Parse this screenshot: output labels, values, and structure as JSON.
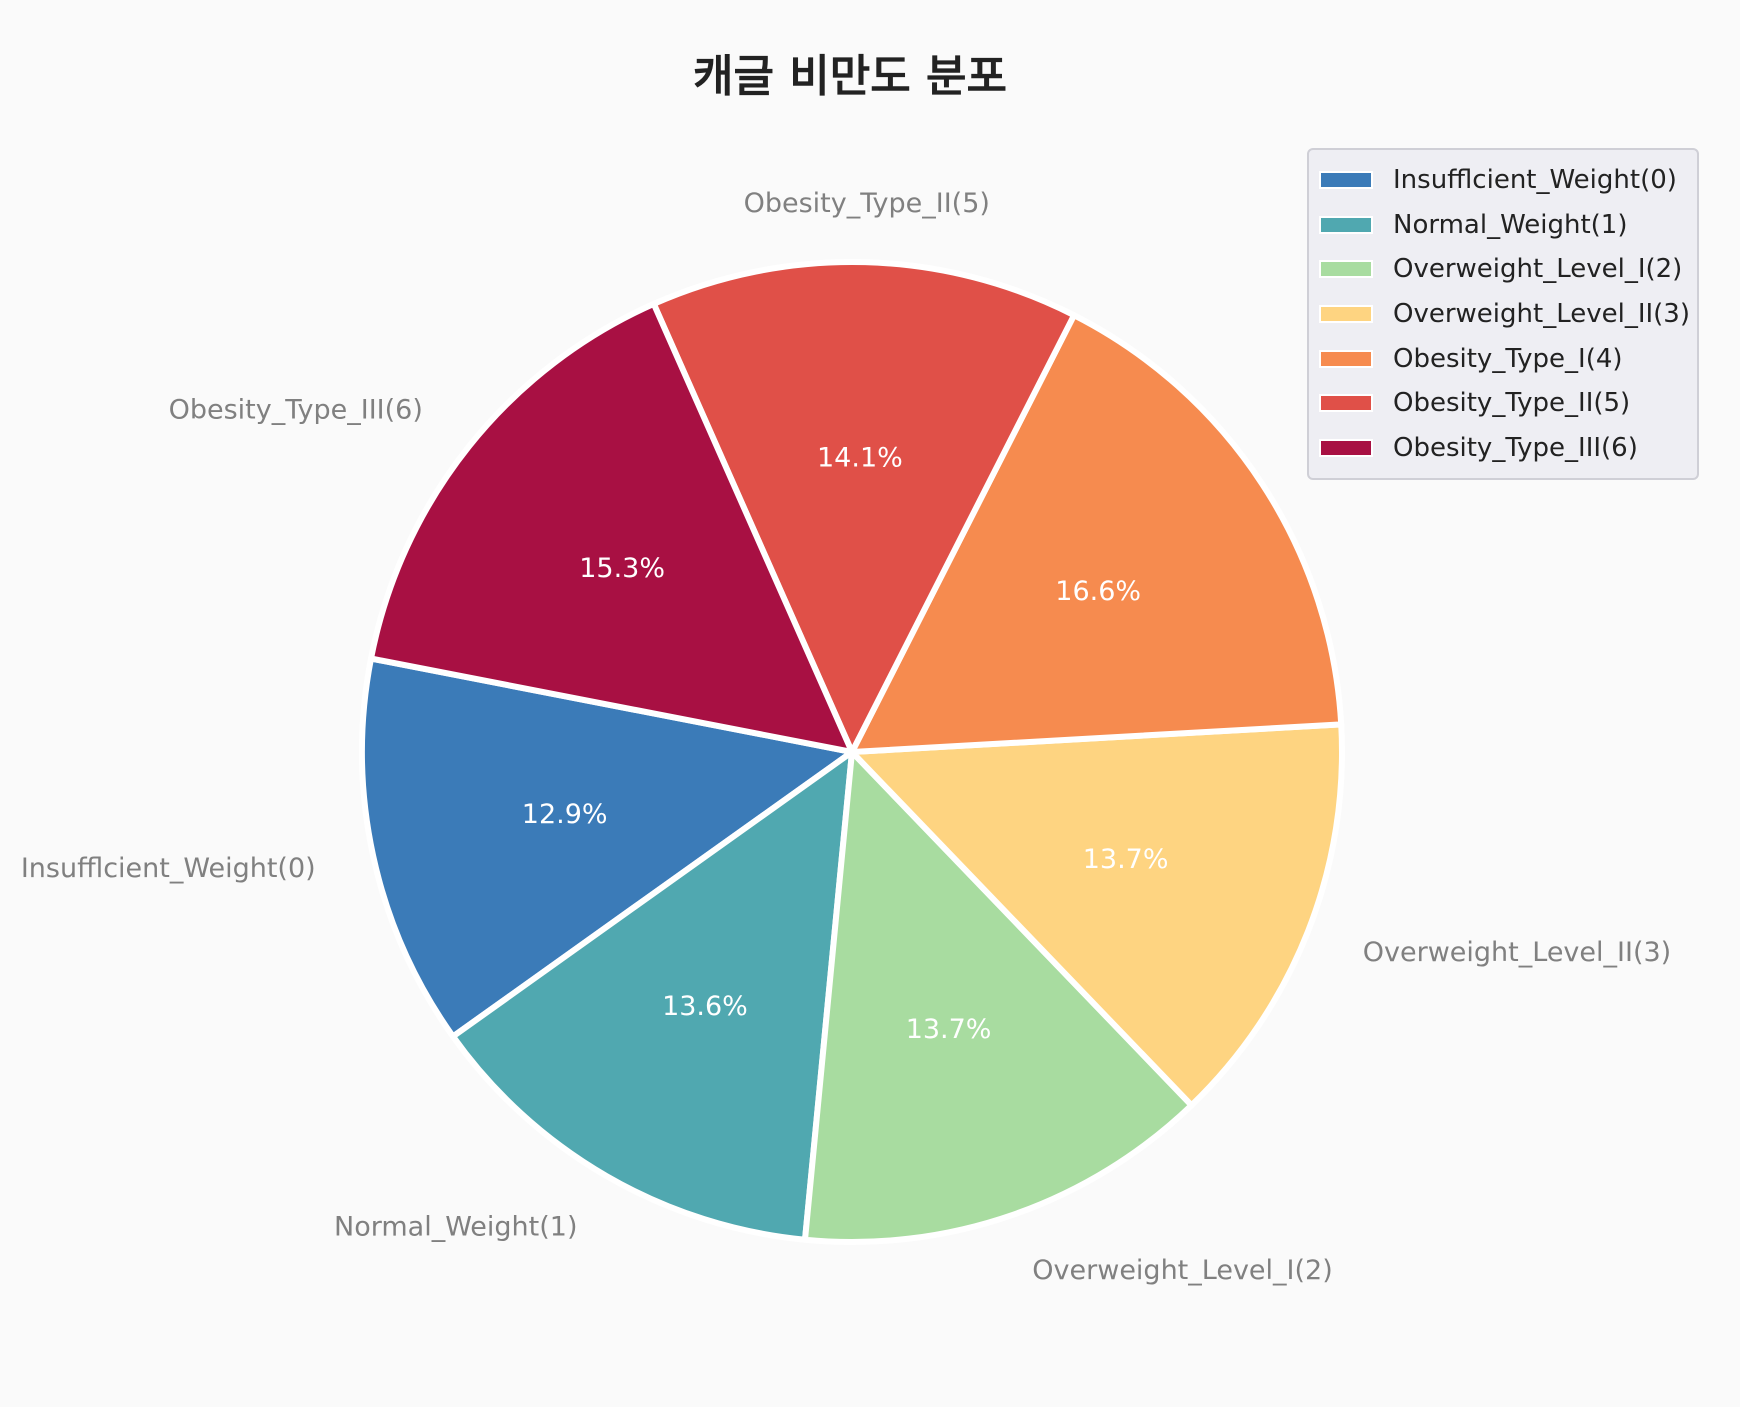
{
  "chart_data": {
    "type": "pie",
    "title": "캐글 비만도 분포",
    "categories": [
      "Insufflcient_Weight(0)",
      "Normal_Weight(1)",
      "Overweight_Level_I(2)",
      "Overweight_Level_II(3)",
      "Obesity_Type_I(4)",
      "Obesity_Type_II(5)",
      "Obesity_Type_III(6)"
    ],
    "values": [
      12.9,
      13.6,
      13.7,
      13.7,
      16.6,
      14.1,
      15.3
    ],
    "value_labels": [
      "12.9%",
      "13.6%",
      "13.7%",
      "13.7%",
      "16.6%",
      "14.1%",
      "15.3%"
    ],
    "colors": [
      "#3b7bb8",
      "#50a8b0",
      "#a8dca0",
      "#fed481",
      "#f68b4f",
      "#e05048",
      "#a81043"
    ],
    "legend_position": "top-right",
    "start_angle_deg": 169,
    "direction": "counterclockwise"
  }
}
